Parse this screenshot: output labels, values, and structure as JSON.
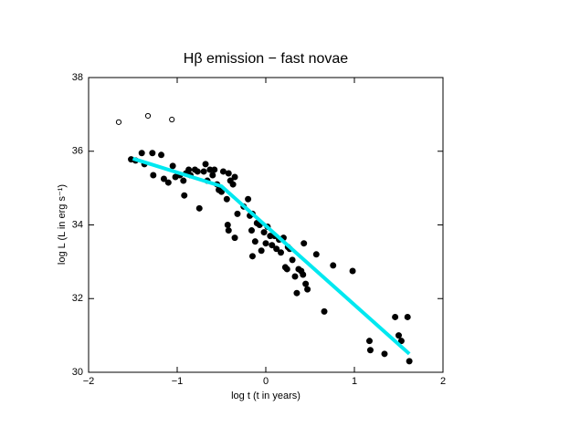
{
  "chart_data": {
    "type": "scatter",
    "title": "Hβ emission − fast novae",
    "x_label": "log t (t in years)",
    "y_label": "log L (L in erg s⁻¹)",
    "xlim": [
      -2,
      2
    ],
    "ylim": [
      30,
      38
    ],
    "xticks": [
      {
        "value": -2,
        "label": "−2"
      },
      {
        "value": -1,
        "label": "−1"
      },
      0,
      1,
      2
    ],
    "yticks": [
      30,
      32,
      34,
      36,
      38
    ],
    "series": [
      {
        "type": "scatter",
        "marker": "filled",
        "color": "#000000",
        "x": [
          -1.52,
          -1.47,
          -1.4,
          -1.37,
          -1.28,
          -1.27,
          -1.18,
          -1.15,
          -1.1,
          -1.05,
          -1.02,
          -0.97,
          -0.93,
          -0.92,
          -0.9,
          -0.87,
          -0.85,
          -0.8,
          -0.77,
          -0.75,
          -0.7,
          -0.68,
          -0.66,
          -0.63,
          -0.6,
          -0.58,
          -0.55,
          -0.53,
          -0.5,
          -0.48,
          -0.44,
          -0.42,
          -0.4,
          -0.37,
          -0.35,
          -0.32,
          -0.43,
          -0.42,
          -0.35,
          -0.25,
          -0.2,
          -0.18,
          -0.15,
          -0.16,
          -0.15,
          -0.12,
          -0.1,
          -0.07,
          -0.05,
          -0.02,
          0.0,
          0.02,
          0.05,
          0.07,
          0.1,
          0.12,
          0.15,
          0.17,
          0.2,
          0.22,
          0.24,
          0.25,
          0.27,
          0.3,
          0.33,
          0.35,
          0.37,
          0.4,
          0.42,
          0.43,
          0.45,
          0.47,
          0.57,
          0.66,
          0.76,
          0.98,
          1.17,
          1.18,
          1.34,
          1.46,
          1.5,
          1.53,
          1.6,
          1.62
        ],
        "values": [
          35.78,
          35.75,
          35.95,
          35.65,
          35.95,
          35.35,
          35.9,
          35.25,
          35.15,
          35.6,
          35.3,
          35.35,
          35.2,
          34.8,
          35.4,
          35.5,
          35.35,
          35.5,
          35.45,
          34.45,
          35.45,
          35.65,
          35.2,
          35.5,
          35.35,
          35.5,
          35.1,
          34.95,
          34.9,
          35.45,
          34.7,
          35.4,
          35.2,
          35.1,
          35.3,
          34.3,
          34.0,
          33.85,
          33.65,
          34.5,
          34.7,
          34.25,
          34.3,
          33.85,
          33.15,
          33.55,
          34.05,
          34.0,
          33.3,
          33.8,
          33.5,
          33.95,
          33.7,
          33.45,
          33.7,
          33.35,
          33.6,
          33.25,
          33.65,
          32.85,
          32.8,
          33.4,
          33.35,
          33.05,
          32.6,
          32.15,
          32.8,
          32.75,
          32.65,
          33.5,
          32.4,
          32.25,
          33.2,
          31.65,
          32.9,
          32.75,
          30.85,
          30.6,
          30.5,
          31.5,
          31.0,
          30.85,
          31.5,
          30.3
        ]
      },
      {
        "type": "scatter",
        "marker": "open",
        "color": "#000000",
        "x": [
          -1.66,
          -1.33,
          -1.06
        ],
        "values": [
          36.79,
          36.96,
          36.86
        ]
      },
      {
        "type": "line",
        "color": "#00e8f0",
        "x": [
          -1.5,
          -0.5,
          1.62
        ],
        "values": [
          35.8,
          35.05,
          30.5
        ]
      }
    ]
  }
}
